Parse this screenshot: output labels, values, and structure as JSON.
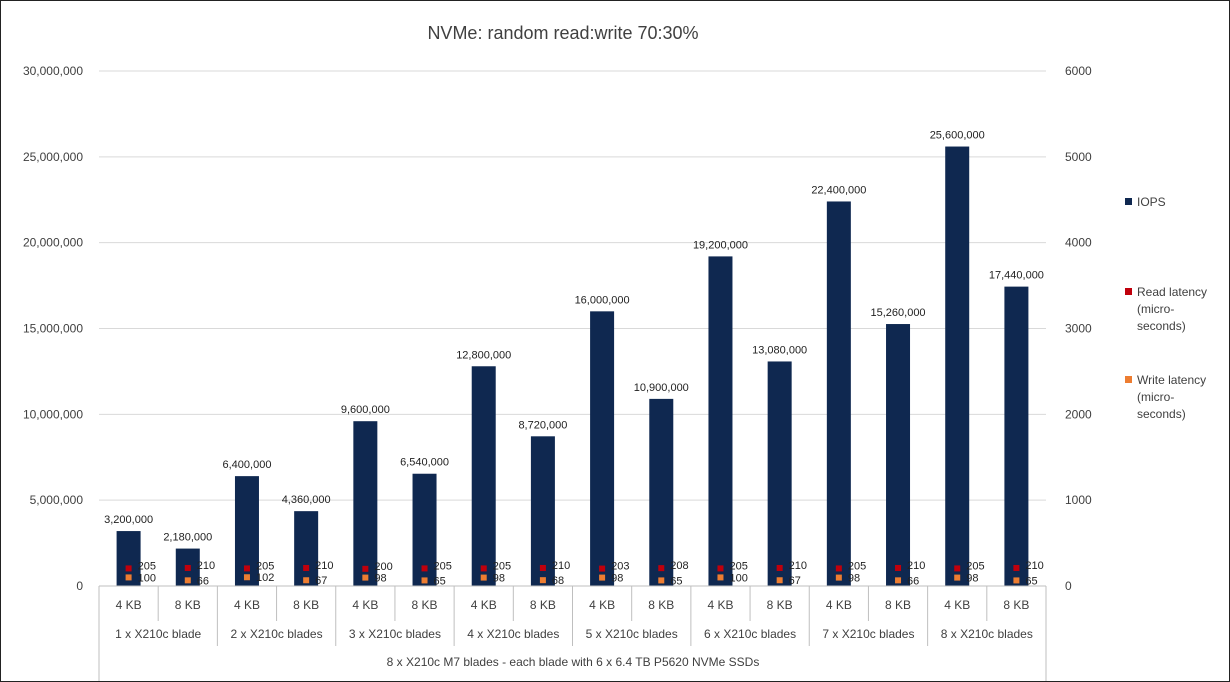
{
  "chart_data": {
    "type": "bar",
    "title": "NVMe: random read:write 70:30%",
    "x_axis_title": "8 x X210c M7 blades - each blade with 6 x 6.4 TB P5620 NVMe SSDs",
    "categories": [
      "4 KB",
      "8 KB",
      "4 KB",
      "8 KB",
      "4 KB",
      "8 KB",
      "4 KB",
      "8 KB",
      "4 KB",
      "8 KB",
      "4 KB",
      "8 KB",
      "4 KB",
      "8 KB",
      "4 KB",
      "8 KB"
    ],
    "groups": [
      "1 x X210c blade",
      "2 x X210c blades",
      "3 x X210c blades",
      "4 x X210c blades",
      "5 x X210c blades",
      "6 x X210c blades",
      "7 x X210c blades",
      "8 x X210c blades"
    ],
    "series": [
      {
        "name": "IOPS",
        "axis": "left",
        "kind": "bar",
        "color": "#0f2850",
        "values": [
          3200000,
          2180000,
          6400000,
          4360000,
          9600000,
          6540000,
          12800000,
          8720000,
          16000000,
          10900000,
          19200000,
          13080000,
          22400000,
          15260000,
          25600000,
          17440000
        ],
        "labels": [
          "3,200,000",
          "2,180,000",
          "6,400,000",
          "4,360,000",
          "9,600,000",
          "6,540,000",
          "12,800,000",
          "8,720,000",
          "16,000,000",
          "10,900,000",
          "19,200,000",
          "13,080,000",
          "22,400,000",
          "15,260,000",
          "25,600,000",
          "17,440,000"
        ]
      },
      {
        "name": "Read latency\n(micro-\nseconds)",
        "axis": "right",
        "kind": "marker",
        "color": "#c0000c",
        "values": [
          205,
          210,
          205,
          210,
          200,
          205,
          205,
          210,
          203,
          208,
          205,
          210,
          205,
          210,
          205,
          210
        ]
      },
      {
        "name": "Write latency\n(micro-\nseconds)",
        "axis": "right",
        "kind": "marker",
        "color": "#ed7d31",
        "values": [
          100,
          66,
          102,
          67,
          98,
          65,
          98,
          68,
          98,
          65,
          100,
          67,
          98,
          66,
          98,
          65
        ]
      }
    ],
    "y_left": {
      "min": 0,
      "max": 30000000,
      "ticks": [
        "0",
        "5,000,000",
        "10,000,000",
        "15,000,000",
        "20,000,000",
        "25,000,000",
        "30,000,000"
      ]
    },
    "y_right": {
      "min": 0,
      "max": 6000,
      "ticks": [
        "0",
        "1000",
        "2000",
        "3000",
        "4000",
        "5000",
        "6000"
      ]
    },
    "grid": true,
    "legend_position": "right"
  }
}
